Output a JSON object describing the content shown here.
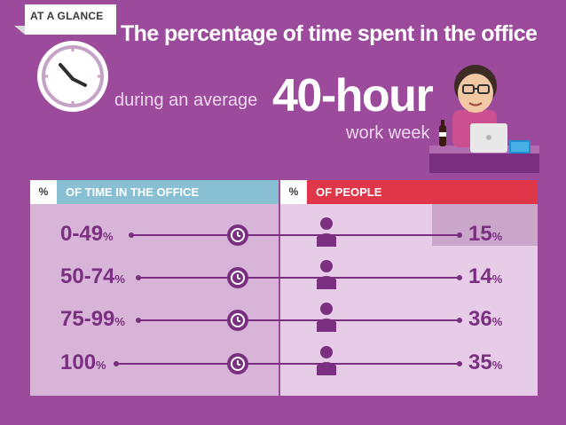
{
  "tag": "AT A GLANCE",
  "headline": {
    "line1": "The percentage of time spent in the office",
    "line2": "during an average",
    "big": "40-hour",
    "line3": "work week"
  },
  "columns": {
    "left": {
      "symbol": "%",
      "label": "OF TIME IN THE OFFICE"
    },
    "right": {
      "symbol": "%",
      "label": "OF PEOPLE"
    }
  },
  "colors": {
    "background": "#9b4a9c",
    "left_header": "#88bfd3",
    "right_header": "#e0364a",
    "accent": "#7a2f80"
  },
  "icons": [
    "clock-icon",
    "office-worker-illustration",
    "small-clock-icon",
    "person-icon"
  ],
  "chart_data": {
    "type": "table",
    "categories": [
      "0-49%",
      "50-74%",
      "75-99%",
      "100%"
    ],
    "values": [
      15,
      14,
      36,
      35
    ],
    "rows": [
      {
        "range": "0-49",
        "unit": "%",
        "value": "15",
        "value_unit": "%"
      },
      {
        "range": "50-74",
        "unit": "%",
        "value": "14",
        "value_unit": "%"
      },
      {
        "range": "75-99",
        "unit": "%",
        "value": "36",
        "value_unit": "%"
      },
      {
        "range": "100",
        "unit": "%",
        "value": "35",
        "value_unit": "%"
      }
    ]
  }
}
